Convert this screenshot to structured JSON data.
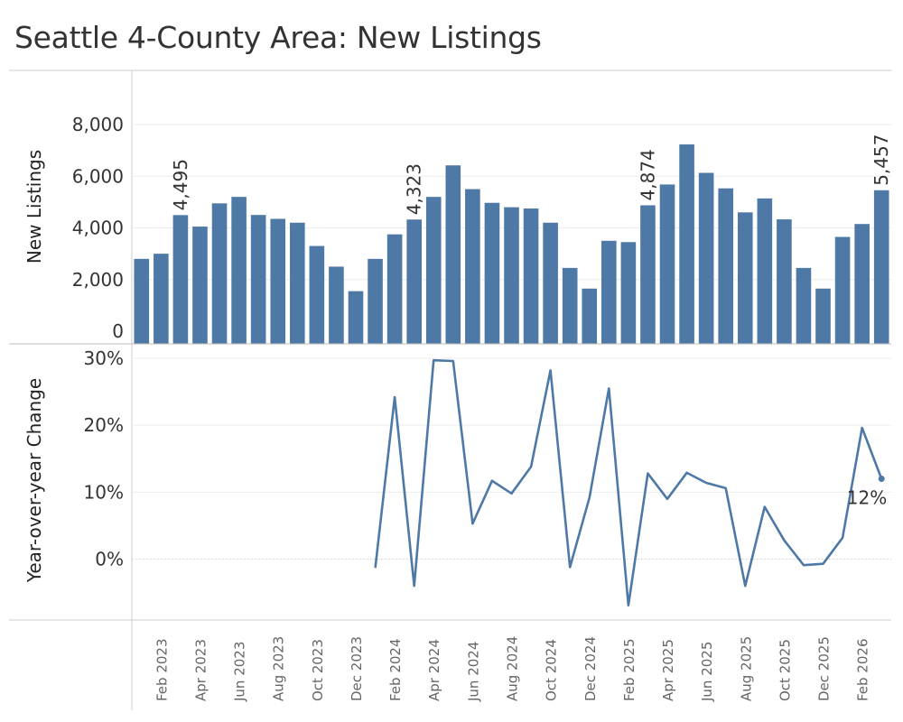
{
  "title": "Seattle 4-County Area: New Listings",
  "colors": {
    "bar": "#4e79a7",
    "line": "#4e79a7",
    "grid": "#ececec",
    "axis": "#cccccc"
  },
  "chart_data": [
    {
      "type": "bar",
      "title": "Seattle 4-County Area: New Listings",
      "ylabel": "New Listings",
      "ylim": [
        0,
        9000
      ],
      "yticks": [
        "0",
        "2,000",
        "4,000",
        "6,000",
        "8,000"
      ],
      "ytick_values": [
        0,
        2000,
        4000,
        6000,
        8000
      ],
      "categories": [
        "Jan 2023",
        "Feb 2023",
        "Mar 2023",
        "Apr 2023",
        "May 2023",
        "Jun 2023",
        "Jul 2023",
        "Aug 2023",
        "Sep 2023",
        "Oct 2023",
        "Nov 2023",
        "Dec 2023",
        "Jan 2024",
        "Feb 2024",
        "Mar 2024",
        "Apr 2024",
        "May 2024",
        "Jun 2024",
        "Jul 2024",
        "Aug 2024",
        "Sep 2024",
        "Oct 2024",
        "Nov 2024",
        "Dec 2024",
        "Jan 2025",
        "Feb 2025",
        "Mar 2025",
        "Apr 2025",
        "May 2025",
        "Jun 2025",
        "Jul 2025",
        "Aug 2025",
        "Sep 2025",
        "Oct 2025",
        "Nov 2025",
        "Dec 2025",
        "Jan 2026",
        "Feb 2026",
        "Mar 2026"
      ],
      "values": [
        2800,
        3000,
        4495,
        4050,
        4950,
        5200,
        4500,
        4350,
        4200,
        3300,
        2500,
        1550,
        2800,
        3750,
        4323,
        5200,
        6420,
        5500,
        4970,
        4800,
        4750,
        4200,
        2450,
        1650,
        3500,
        3450,
        4874,
        5680,
        7230,
        6130,
        5530,
        4600,
        5140,
        4330,
        2450,
        1650,
        3650,
        4150,
        5457
      ],
      "data_labels": [
        {
          "category": "Mar 2023",
          "text": "4,495"
        },
        {
          "category": "Mar 2024",
          "text": "4,323"
        },
        {
          "category": "Mar 2025",
          "text": "4,874"
        },
        {
          "category": "Mar 2026",
          "text": "5,457"
        }
      ]
    },
    {
      "type": "line",
      "ylabel": "Year-over-year Change",
      "ylim": [
        -0.09,
        0.31
      ],
      "yticks": [
        "0%",
        "10%",
        "20%",
        "30%"
      ],
      "ytick_values": [
        0,
        0.1,
        0.2,
        0.3
      ],
      "x": [
        "Jan 2024",
        "Feb 2024",
        "Mar 2024",
        "Apr 2024",
        "May 2024",
        "Jun 2024",
        "Jul 2024",
        "Aug 2024",
        "Sep 2024",
        "Oct 2024",
        "Nov 2024",
        "Dec 2024",
        "Jan 2025",
        "Feb 2025",
        "Mar 2025",
        "Apr 2025",
        "May 2025",
        "Jun 2025",
        "Jul 2025",
        "Aug 2025",
        "Sep 2025",
        "Oct 2025",
        "Nov 2025",
        "Dec 2025",
        "Jan 2026",
        "Feb 2026",
        "Mar 2026"
      ],
      "values": [
        -0.013,
        0.242,
        -0.04,
        0.297,
        0.296,
        0.053,
        0.117,
        0.098,
        0.138,
        0.282,
        -0.012,
        0.092,
        0.255,
        -0.069,
        0.128,
        0.09,
        0.129,
        0.114,
        0.106,
        -0.04,
        0.078,
        0.028,
        -0.009,
        -0.007,
        0.032,
        0.196,
        0.12
      ],
      "end_label": "12%",
      "x_tick_labels": [
        "Feb 2023",
        "Apr 2023",
        "Jun 2023",
        "Aug 2023",
        "Oct 2023",
        "Dec 2023",
        "Feb 2024",
        "Apr 2024",
        "Jun 2024",
        "Aug 2024",
        "Oct 2024",
        "Dec 2024",
        "Feb 2025",
        "Apr 2025",
        "Jun 2025",
        "Aug 2025",
        "Oct 2025",
        "Dec 2025",
        "Feb 2026"
      ]
    }
  ]
}
